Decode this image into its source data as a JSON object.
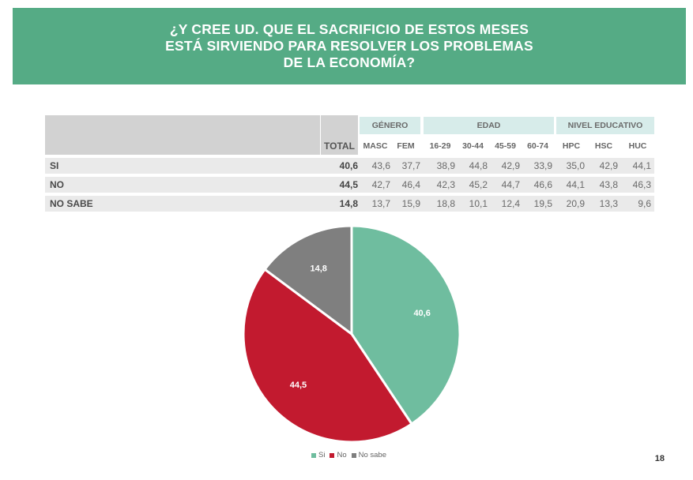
{
  "title": {
    "line1": "¿Y CREE UD. QUE EL SACRIFICIO DE ESTOS MESES",
    "line2": "ESTÁ SIRVIENDO PARA RESOLVER LOS PROBLEMAS",
    "line3": "DE LA ECONOMÍA?"
  },
  "table": {
    "groups": [
      "GÉNERO",
      "EDAD",
      "NIVEL EDUCATIVO"
    ],
    "columns": [
      "TOTAL",
      "MASC",
      "FEM",
      "16-29",
      "30-44",
      "45-59",
      "60-74",
      "HPC",
      "HSC",
      "HUC"
    ],
    "rows": [
      {
        "label": "SI",
        "values": [
          "40,6",
          "43,6",
          "37,7",
          "38,9",
          "44,8",
          "42,9",
          "33,9",
          "35,0",
          "42,9",
          "44,1"
        ]
      },
      {
        "label": "NO",
        "values": [
          "44,5",
          "42,7",
          "46,4",
          "42,3",
          "45,2",
          "44,7",
          "46,6",
          "44,1",
          "43,8",
          "46,3"
        ]
      },
      {
        "label": "NO SABE",
        "values": [
          "14,8",
          "13,7",
          "15,9",
          "18,8",
          "10,1",
          "12,4",
          "19,5",
          "20,9",
          "13,3",
          "9,6"
        ]
      }
    ]
  },
  "chart_data": {
    "type": "pie",
    "categories": [
      "Si",
      "No",
      "No sabe"
    ],
    "values": [
      40.6,
      44.5,
      14.8
    ],
    "labels": [
      "40,6",
      "44,5",
      "14,8"
    ],
    "colors": [
      "#6fbd9f",
      "#c21a2f",
      "#7f7f7f"
    ],
    "legend_position": "bottom"
  },
  "page_number": "18"
}
